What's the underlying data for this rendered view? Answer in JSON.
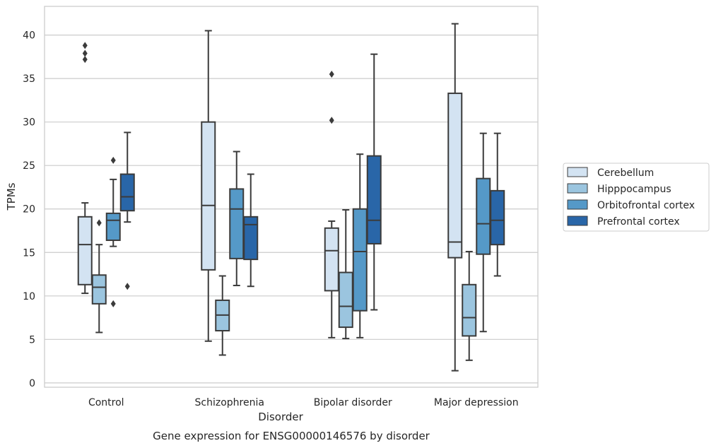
{
  "chart_data": {
    "type": "box",
    "title": "Gene expression for ENSG00000146576 by disorder",
    "xlabel": "Disorder",
    "ylabel": "TPMs",
    "ylim": [
      -0.5,
      43.3
    ],
    "yticks": [
      0,
      5,
      10,
      15,
      20,
      25,
      30,
      35,
      40
    ],
    "grid": true,
    "legend_placement": "center-right",
    "categories": [
      "Control",
      "Schizophrenia",
      "Bipolar disorder",
      "Major depression"
    ],
    "series": [
      {
        "name": "Cerebellum",
        "color": "#d3e3f2",
        "boxes": [
          {
            "whislo": 10.3,
            "q1": 11.3,
            "med": 15.9,
            "q3": 19.1,
            "whishi": 20.7,
            "fliers": [
              37.2,
              37.9,
              38.8
            ]
          },
          {
            "whislo": 4.8,
            "q1": 13.0,
            "med": 20.4,
            "q3": 30.0,
            "whishi": 40.5,
            "fliers": []
          },
          {
            "whislo": 5.2,
            "q1": 10.6,
            "med": 15.2,
            "q3": 17.8,
            "whishi": 18.6,
            "fliers": [
              30.2,
              35.5
            ]
          },
          {
            "whislo": 1.4,
            "q1": 14.4,
            "med": 16.2,
            "q3": 33.3,
            "whishi": 41.3,
            "fliers": []
          }
        ]
      },
      {
        "name": "Hipppocampus",
        "color": "#9bc5df",
        "boxes": [
          {
            "whislo": 5.8,
            "q1": 9.1,
            "med": 11.0,
            "q3": 12.4,
            "whishi": 15.9,
            "fliers": [
              18.4
            ]
          },
          {
            "whislo": 3.2,
            "q1": 6.0,
            "med": 7.8,
            "q3": 9.5,
            "whishi": 12.3,
            "fliers": []
          },
          {
            "whislo": 5.1,
            "q1": 6.4,
            "med": 8.8,
            "q3": 12.7,
            "whishi": 19.9,
            "fliers": []
          },
          {
            "whislo": 2.6,
            "q1": 5.4,
            "med": 7.5,
            "q3": 11.3,
            "whishi": 15.1,
            "fliers": []
          }
        ]
      },
      {
        "name": "Orbitofrontal cortex",
        "color": "#5599c8",
        "boxes": [
          {
            "whislo": 15.7,
            "q1": 16.4,
            "med": 18.7,
            "q3": 19.5,
            "whishi": 23.4,
            "fliers": [
              9.1,
              25.6
            ]
          },
          {
            "whislo": 11.2,
            "q1": 14.3,
            "med": 20.0,
            "q3": 22.3,
            "whishi": 26.6,
            "fliers": []
          },
          {
            "whislo": 5.2,
            "q1": 8.3,
            "med": 15.1,
            "q3": 20.0,
            "whishi": 26.3,
            "fliers": []
          },
          {
            "whislo": 5.9,
            "q1": 14.8,
            "med": 18.3,
            "q3": 23.5,
            "whishi": 28.7,
            "fliers": []
          }
        ]
      },
      {
        "name": "Prefrontal cortex",
        "color": "#2966a8",
        "boxes": [
          {
            "whislo": 18.5,
            "q1": 19.8,
            "med": 21.4,
            "q3": 24.0,
            "whishi": 28.8,
            "fliers": [
              11.1
            ]
          },
          {
            "whislo": 11.1,
            "q1": 14.2,
            "med": 18.2,
            "q3": 19.1,
            "whishi": 24.0,
            "fliers": []
          },
          {
            "whislo": 8.4,
            "q1": 16.0,
            "med": 18.7,
            "q3": 26.1,
            "whishi": 37.8,
            "fliers": []
          },
          {
            "whislo": 12.3,
            "q1": 15.9,
            "med": 18.7,
            "q3": 22.1,
            "whishi": 28.7,
            "fliers": []
          }
        ]
      }
    ]
  }
}
